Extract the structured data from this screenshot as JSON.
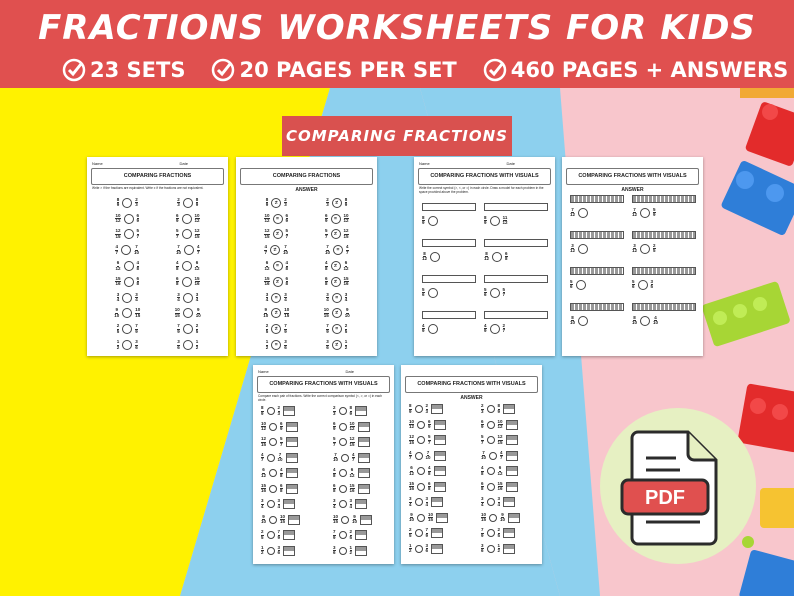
{
  "banner": {
    "title": "FRACTIONS WORKSHEETS FOR KIDS",
    "stats": [
      "23 SETS",
      "20 PAGES PER SET",
      "460 PAGES + ANSWERS"
    ]
  },
  "section_label": "COMPARING FRACTIONS",
  "worksheets": {
    "p1": {
      "name": "Name",
      "date": "Date",
      "title": "COMPARING FRACTIONS",
      "instructions": "Write > if the fractions are equivalent. Write ≠ if the fractions are not equivalent."
    },
    "p2": {
      "title": "COMPARING FRACTIONS",
      "subtitle": "ANSWER"
    },
    "p3": {
      "name": "Name",
      "date": "Date",
      "title": "COMPARING FRACTIONS WITH VISUALS",
      "instructions": "Write the correct symbol (>, <, or =) in each circle. Draw a model for each problem in the space provided above the problem."
    },
    "p4": {
      "title": "COMPARING FRACTIONS WITH VISUALS",
      "subtitle": "ANSWER"
    },
    "p5": {
      "name": "Name",
      "date": "Date",
      "title": "COMPARING FRACTIONS WITH VISUALS",
      "instructions": "Compare each pair of fractions. Write the correct comparison symbol (<, >, or =) in each circle."
    },
    "p6": {
      "title": "COMPARING FRACTIONS WITH VISUALS",
      "subtitle": "ANSWER"
    }
  },
  "fractions_left": [
    [
      "8",
      "9"
    ],
    [
      "10",
      "12"
    ],
    [
      "12",
      "15"
    ],
    [
      "4",
      "7"
    ],
    [
      "6",
      "12"
    ],
    [
      "15",
      "16"
    ],
    [
      "3",
      "4"
    ],
    [
      "9",
      "10"
    ],
    [
      "2",
      "5"
    ],
    [
      "1",
      "2"
    ]
  ],
  "fractions_right": [
    [
      "2",
      "3"
    ],
    [
      "6",
      "9"
    ],
    [
      "5",
      "7"
    ],
    [
      "7",
      "10"
    ],
    [
      "4",
      "8"
    ],
    [
      "6",
      "8"
    ],
    [
      "3",
      "4"
    ],
    [
      "10",
      "15"
    ],
    [
      "7",
      "9"
    ],
    [
      "3",
      "6"
    ]
  ],
  "visual_pairs": [
    [
      [
        "8",
        "9"
      ],
      [
        "11",
        "12"
      ]
    ],
    [
      [
        "8",
        "12"
      ],
      [
        "6",
        "8"
      ]
    ],
    [
      [
        "5",
        "6"
      ],
      [
        "5",
        "7"
      ]
    ],
    [
      [
        "4",
        "9"
      ],
      [
        "2",
        "7"
      ]
    ]
  ],
  "visual_pairs_b": [
    [
      [
        "7",
        "12"
      ],
      [
        "5",
        "9"
      ]
    ],
    [
      [
        "3",
        "12"
      ],
      [
        "2",
        "5"
      ]
    ],
    [
      [
        "5",
        "6"
      ],
      [
        "3",
        "5"
      ]
    ],
    [
      [
        "8",
        "10"
      ],
      [
        "4",
        "10"
      ]
    ]
  ],
  "pdf_icon": {
    "label": "PDF",
    "icon": "pdf-file-icon"
  },
  "colors": {
    "banner": "#e0504f",
    "yellow": "#fff200",
    "pink": "#f8c6cc",
    "blue": "#8dd0ee"
  }
}
